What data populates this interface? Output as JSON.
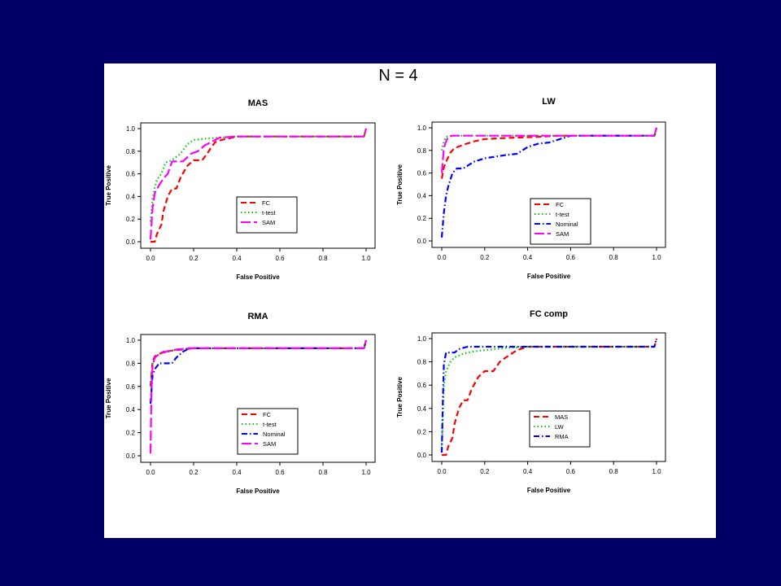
{
  "slide": {
    "title": "N = 4",
    "background": "#000066"
  },
  "colors": {
    "FC": "#ff0000",
    "t-test": "#00cc00",
    "Nominal": "#0000ff",
    "SAM": "#ff00ff",
    "MAS": "#ff0000",
    "LW": "#00cc00",
    "RMA": "#0000ff"
  },
  "chart_data": [
    {
      "type": "line",
      "title": "MAS",
      "xlabel": "False Positive",
      "ylabel": "True Positive",
      "xlim": [
        0,
        1
      ],
      "ylim": [
        0,
        1
      ],
      "xticks": [
        "0.0",
        "0.2",
        "0.4",
        "0.6",
        "0.8",
        "1.0"
      ],
      "yticks": [
        "0.0",
        "0.2",
        "0.4",
        "0.6",
        "0.8",
        "1.0"
      ],
      "series": [
        {
          "name": "FC",
          "dash": "dashed",
          "points": [
            [
              0,
              0
            ],
            [
              0.02,
              0
            ],
            [
              0.03,
              0.07
            ],
            [
              0.05,
              0.15
            ],
            [
              0.06,
              0.27
            ],
            [
              0.08,
              0.4
            ],
            [
              0.1,
              0.47
            ],
            [
              0.12,
              0.47
            ],
            [
              0.14,
              0.57
            ],
            [
              0.17,
              0.67
            ],
            [
              0.2,
              0.72
            ],
            [
              0.22,
              0.72
            ],
            [
              0.24,
              0.72
            ],
            [
              0.27,
              0.8
            ],
            [
              0.28,
              0.83
            ],
            [
              0.3,
              0.88
            ],
            [
              0.33,
              0.9
            ],
            [
              0.38,
              0.92
            ],
            [
              0.4,
              0.93
            ],
            [
              0.99,
              0.93
            ],
            [
              1,
              1
            ]
          ]
        },
        {
          "name": "t-test",
          "dash": "dotted",
          "points": [
            [
              0,
              0.18
            ],
            [
              0.01,
              0.38
            ],
            [
              0.02,
              0.48
            ],
            [
              0.03,
              0.55
            ],
            [
              0.05,
              0.6
            ],
            [
              0.07,
              0.7
            ],
            [
              0.1,
              0.72
            ],
            [
              0.14,
              0.78
            ],
            [
              0.17,
              0.86
            ],
            [
              0.2,
              0.9
            ],
            [
              0.25,
              0.91
            ],
            [
              0.4,
              0.93
            ],
            [
              0.99,
              0.93
            ],
            [
              1,
              1
            ]
          ]
        },
        {
          "name": "SAM",
          "dash": "longdash",
          "points": [
            [
              0,
              0.02
            ],
            [
              0.01,
              0.3
            ],
            [
              0.02,
              0.43
            ],
            [
              0.04,
              0.5
            ],
            [
              0.06,
              0.56
            ],
            [
              0.08,
              0.6
            ],
            [
              0.1,
              0.71
            ],
            [
              0.15,
              0.71
            ],
            [
              0.19,
              0.78
            ],
            [
              0.22,
              0.8
            ],
            [
              0.25,
              0.85
            ],
            [
              0.28,
              0.88
            ],
            [
              0.32,
              0.92
            ],
            [
              0.4,
              0.93
            ],
            [
              0.99,
              0.93
            ],
            [
              1,
              1
            ]
          ]
        }
      ],
      "legend": [
        "FC",
        "t-test",
        "SAM"
      ]
    },
    {
      "type": "line",
      "title": "LW",
      "xlabel": "False Positive",
      "ylabel": "True Positive",
      "xlim": [
        0,
        1
      ],
      "ylim": [
        0,
        1
      ],
      "xticks": [
        "0.0",
        "0.2",
        "0.4",
        "0.6",
        "0.8",
        "1.0"
      ],
      "yticks": [
        "0.0",
        "0.2",
        "0.4",
        "0.6",
        "0.8",
        "1.0"
      ],
      "series": [
        {
          "name": "FC",
          "dash": "dashed",
          "points": [
            [
              0,
              0.55
            ],
            [
              0.01,
              0.65
            ],
            [
              0.02,
              0.7
            ],
            [
              0.04,
              0.78
            ],
            [
              0.06,
              0.82
            ],
            [
              0.1,
              0.85
            ],
            [
              0.15,
              0.88
            ],
            [
              0.2,
              0.9
            ],
            [
              0.3,
              0.91
            ],
            [
              0.45,
              0.92
            ],
            [
              0.55,
              0.93
            ],
            [
              0.99,
              0.93
            ],
            [
              1,
              1
            ]
          ]
        },
        {
          "name": "t-test",
          "dash": "dotted",
          "points": [
            [
              0,
              0.8
            ],
            [
              0.01,
              0.88
            ],
            [
              0.02,
              0.92
            ],
            [
              0.05,
              0.93
            ],
            [
              0.99,
              0.93
            ],
            [
              1,
              1
            ]
          ]
        },
        {
          "name": "Nominal",
          "dash": "dotdash",
          "points": [
            [
              0,
              0.03
            ],
            [
              0.01,
              0.25
            ],
            [
              0.02,
              0.4
            ],
            [
              0.03,
              0.48
            ],
            [
              0.05,
              0.6
            ],
            [
              0.07,
              0.64
            ],
            [
              0.1,
              0.64
            ],
            [
              0.15,
              0.7
            ],
            [
              0.2,
              0.73
            ],
            [
              0.3,
              0.76
            ],
            [
              0.35,
              0.77
            ],
            [
              0.4,
              0.83
            ],
            [
              0.45,
              0.86
            ],
            [
              0.5,
              0.87
            ],
            [
              0.55,
              0.9
            ],
            [
              0.6,
              0.93
            ],
            [
              0.99,
              0.93
            ],
            [
              1,
              1
            ]
          ]
        },
        {
          "name": "SAM",
          "dash": "longdash",
          "points": [
            [
              0,
              0.6
            ],
            [
              0.01,
              0.82
            ],
            [
              0.02,
              0.88
            ],
            [
              0.03,
              0.92
            ],
            [
              0.05,
              0.93
            ],
            [
              0.99,
              0.93
            ],
            [
              1,
              1
            ]
          ]
        }
      ],
      "legend": [
        "FC",
        "t-test",
        "Nominal",
        "SAM"
      ]
    },
    {
      "type": "line",
      "title": "RMA",
      "xlabel": "False Positive",
      "ylabel": "True Positive",
      "xlim": [
        0,
        1
      ],
      "ylim": [
        0,
        1
      ],
      "xticks": [
        "0.0",
        "0.2",
        "0.4",
        "0.6",
        "0.8",
        "1.0"
      ],
      "yticks": [
        "0.0",
        "0.2",
        "0.4",
        "0.6",
        "0.8",
        "1.0"
      ],
      "series": [
        {
          "name": "FC",
          "dash": "dashed",
          "points": [
            [
              0,
              0.6
            ],
            [
              0.01,
              0.82
            ],
            [
              0.02,
              0.86
            ],
            [
              0.04,
              0.88
            ],
            [
              0.06,
              0.9
            ],
            [
              0.1,
              0.91
            ],
            [
              0.15,
              0.92
            ],
            [
              0.2,
              0.93
            ],
            [
              0.99,
              0.93
            ],
            [
              1,
              1
            ]
          ]
        },
        {
          "name": "t-test",
          "dash": "dotted",
          "points": [
            [
              0,
              0.6
            ],
            [
              0.01,
              0.8
            ],
            [
              0.02,
              0.85
            ],
            [
              0.04,
              0.88
            ],
            [
              0.08,
              0.9
            ],
            [
              0.12,
              0.92
            ],
            [
              0.2,
              0.93
            ],
            [
              0.99,
              0.93
            ],
            [
              1,
              1
            ]
          ]
        },
        {
          "name": "Nominal",
          "dash": "dotdash",
          "points": [
            [
              0,
              0.45
            ],
            [
              0.01,
              0.7
            ],
            [
              0.02,
              0.75
            ],
            [
              0.04,
              0.8
            ],
            [
              0.08,
              0.8
            ],
            [
              0.1,
              0.8
            ],
            [
              0.12,
              0.85
            ],
            [
              0.15,
              0.9
            ],
            [
              0.18,
              0.93
            ],
            [
              0.99,
              0.93
            ],
            [
              1,
              1
            ]
          ]
        },
        {
          "name": "SAM",
          "dash": "longdash",
          "points": [
            [
              0,
              0.02
            ],
            [
              0.005,
              0.6
            ],
            [
              0.01,
              0.78
            ],
            [
              0.02,
              0.85
            ],
            [
              0.04,
              0.88
            ],
            [
              0.07,
              0.9
            ],
            [
              0.12,
              0.92
            ],
            [
              0.18,
              0.93
            ],
            [
              0.99,
              0.93
            ],
            [
              1,
              1
            ]
          ]
        }
      ],
      "legend": [
        "FC",
        "t-test",
        "Nominal",
        "SAM"
      ]
    },
    {
      "type": "line",
      "title": "FC comp",
      "xlabel": "False Positive",
      "ylabel": "True Positive",
      "xlim": [
        0,
        1
      ],
      "ylim": [
        0,
        1
      ],
      "xticks": [
        "0.0",
        "0.2",
        "0.4",
        "0.6",
        "0.8",
        "1.0"
      ],
      "yticks": [
        "0.0",
        "0.2",
        "0.4",
        "0.6",
        "0.8",
        "1.0"
      ],
      "series": [
        {
          "name": "MAS",
          "dash": "dashed",
          "points": [
            [
              0,
              0
            ],
            [
              0.02,
              0
            ],
            [
              0.03,
              0.07
            ],
            [
              0.05,
              0.15
            ],
            [
              0.06,
              0.27
            ],
            [
              0.08,
              0.4
            ],
            [
              0.1,
              0.47
            ],
            [
              0.12,
              0.47
            ],
            [
              0.14,
              0.57
            ],
            [
              0.17,
              0.67
            ],
            [
              0.2,
              0.72
            ],
            [
              0.24,
              0.72
            ],
            [
              0.27,
              0.8
            ],
            [
              0.3,
              0.84
            ],
            [
              0.35,
              0.9
            ],
            [
              0.4,
              0.93
            ],
            [
              0.99,
              0.93
            ],
            [
              1,
              1
            ]
          ]
        },
        {
          "name": "LW",
          "dash": "dotted",
          "points": [
            [
              0,
              0.05
            ],
            [
              0.01,
              0.6
            ],
            [
              0.02,
              0.72
            ],
            [
              0.04,
              0.8
            ],
            [
              0.06,
              0.84
            ],
            [
              0.1,
              0.87
            ],
            [
              0.15,
              0.89
            ],
            [
              0.2,
              0.9
            ],
            [
              0.3,
              0.92
            ],
            [
              0.4,
              0.93
            ],
            [
              0.99,
              0.93
            ],
            [
              1,
              1
            ]
          ]
        },
        {
          "name": "RMA",
          "dash": "dotdash",
          "points": [
            [
              0,
              0.02
            ],
            [
              0.005,
              0.45
            ],
            [
              0.01,
              0.78
            ],
            [
              0.02,
              0.88
            ],
            [
              0.06,
              0.88
            ],
            [
              0.08,
              0.91
            ],
            [
              0.12,
              0.93
            ],
            [
              0.99,
              0.93
            ],
            [
              1,
              1
            ]
          ]
        }
      ],
      "legend": [
        "MAS",
        "LW",
        "RMA"
      ]
    }
  ]
}
